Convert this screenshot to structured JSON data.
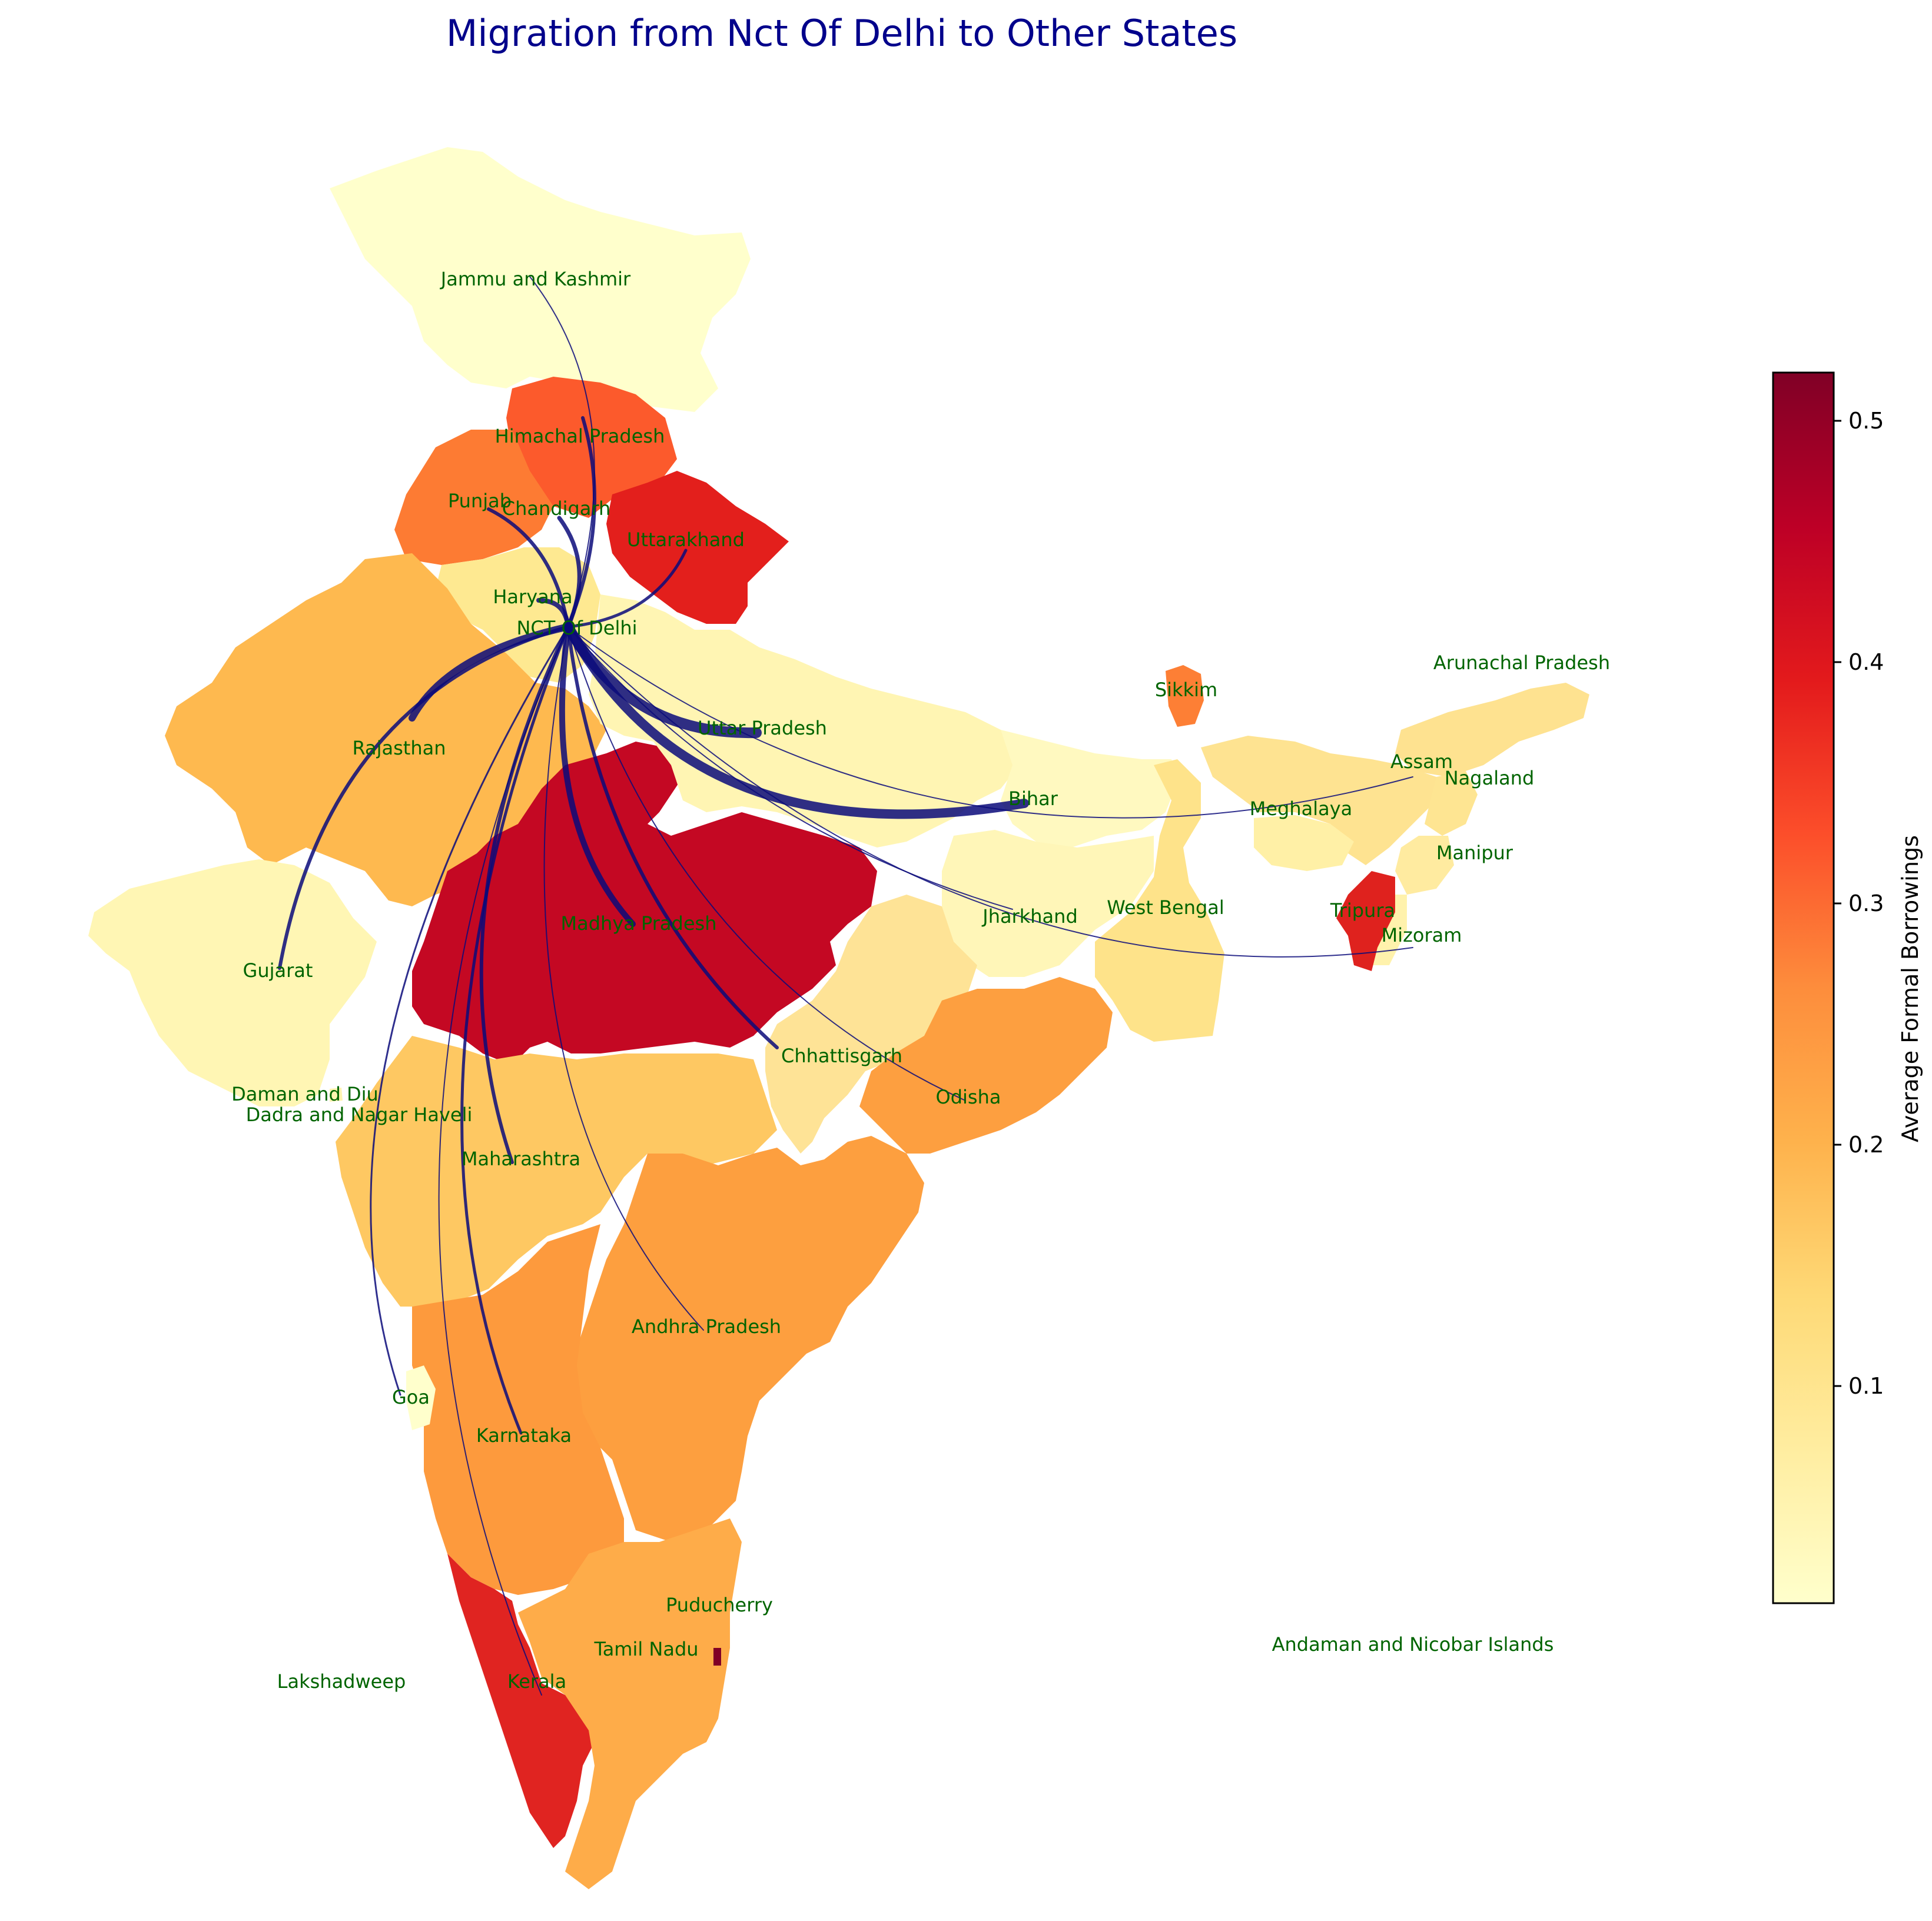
{
  "map": {
    "title": "Migration from Nct Of Delhi to Other States",
    "origin": "NCT Of Delhi",
    "flow_color": "#0b0b7a",
    "colormap": [
      "#ffffcc",
      "#ffeda0",
      "#fed976",
      "#feb24c",
      "#fd8d3c",
      "#fc4e2a",
      "#e31a1c",
      "#bd0026",
      "#800026"
    ],
    "labels": {
      "jk": "Jammu and Kashmir",
      "hp": "Himachal Pradesh",
      "pb": "Punjab",
      "ch": "Chandigarh",
      "uk": "Uttarakhand",
      "hr": "Haryana",
      "dl": "NCT Of Delhi",
      "rj": "Rajasthan",
      "up": "Uttar Pradesh",
      "br": "Bihar",
      "sk": "Sikkim",
      "ar": "Arunachal Pradesh",
      "as": "Assam",
      "nl": "Nagaland",
      "ml": "Meghalaya",
      "mn": "Manipur",
      "mp": "Madhya Pradesh",
      "jh": "Jharkhand",
      "wb": "West Bengal",
      "tr": "Tripura",
      "mz": "Mizoram",
      "gj": "Gujarat",
      "cg": "Chhattisgarh",
      "od": "Odisha",
      "dd": "Daman and Diu",
      "dn": "Dadra and Nagar Haveli",
      "mh": "Maharashtra",
      "ap": "Andhra Pradesh",
      "ga": "Goa",
      "ka": "Karnataka",
      "py": "Puducherry",
      "tn": "Tamil Nadu",
      "an": "Andaman and Nicobar Islands",
      "ld": "Lakshadweep",
      "kl": "Kerala"
    }
  },
  "colorbar": {
    "title": "Average Formal Borrowings",
    "ticks": [
      "0.1",
      "0.2",
      "0.3",
      "0.4",
      "0.5"
    ],
    "range": [
      0.01,
      0.52
    ]
  }
}
